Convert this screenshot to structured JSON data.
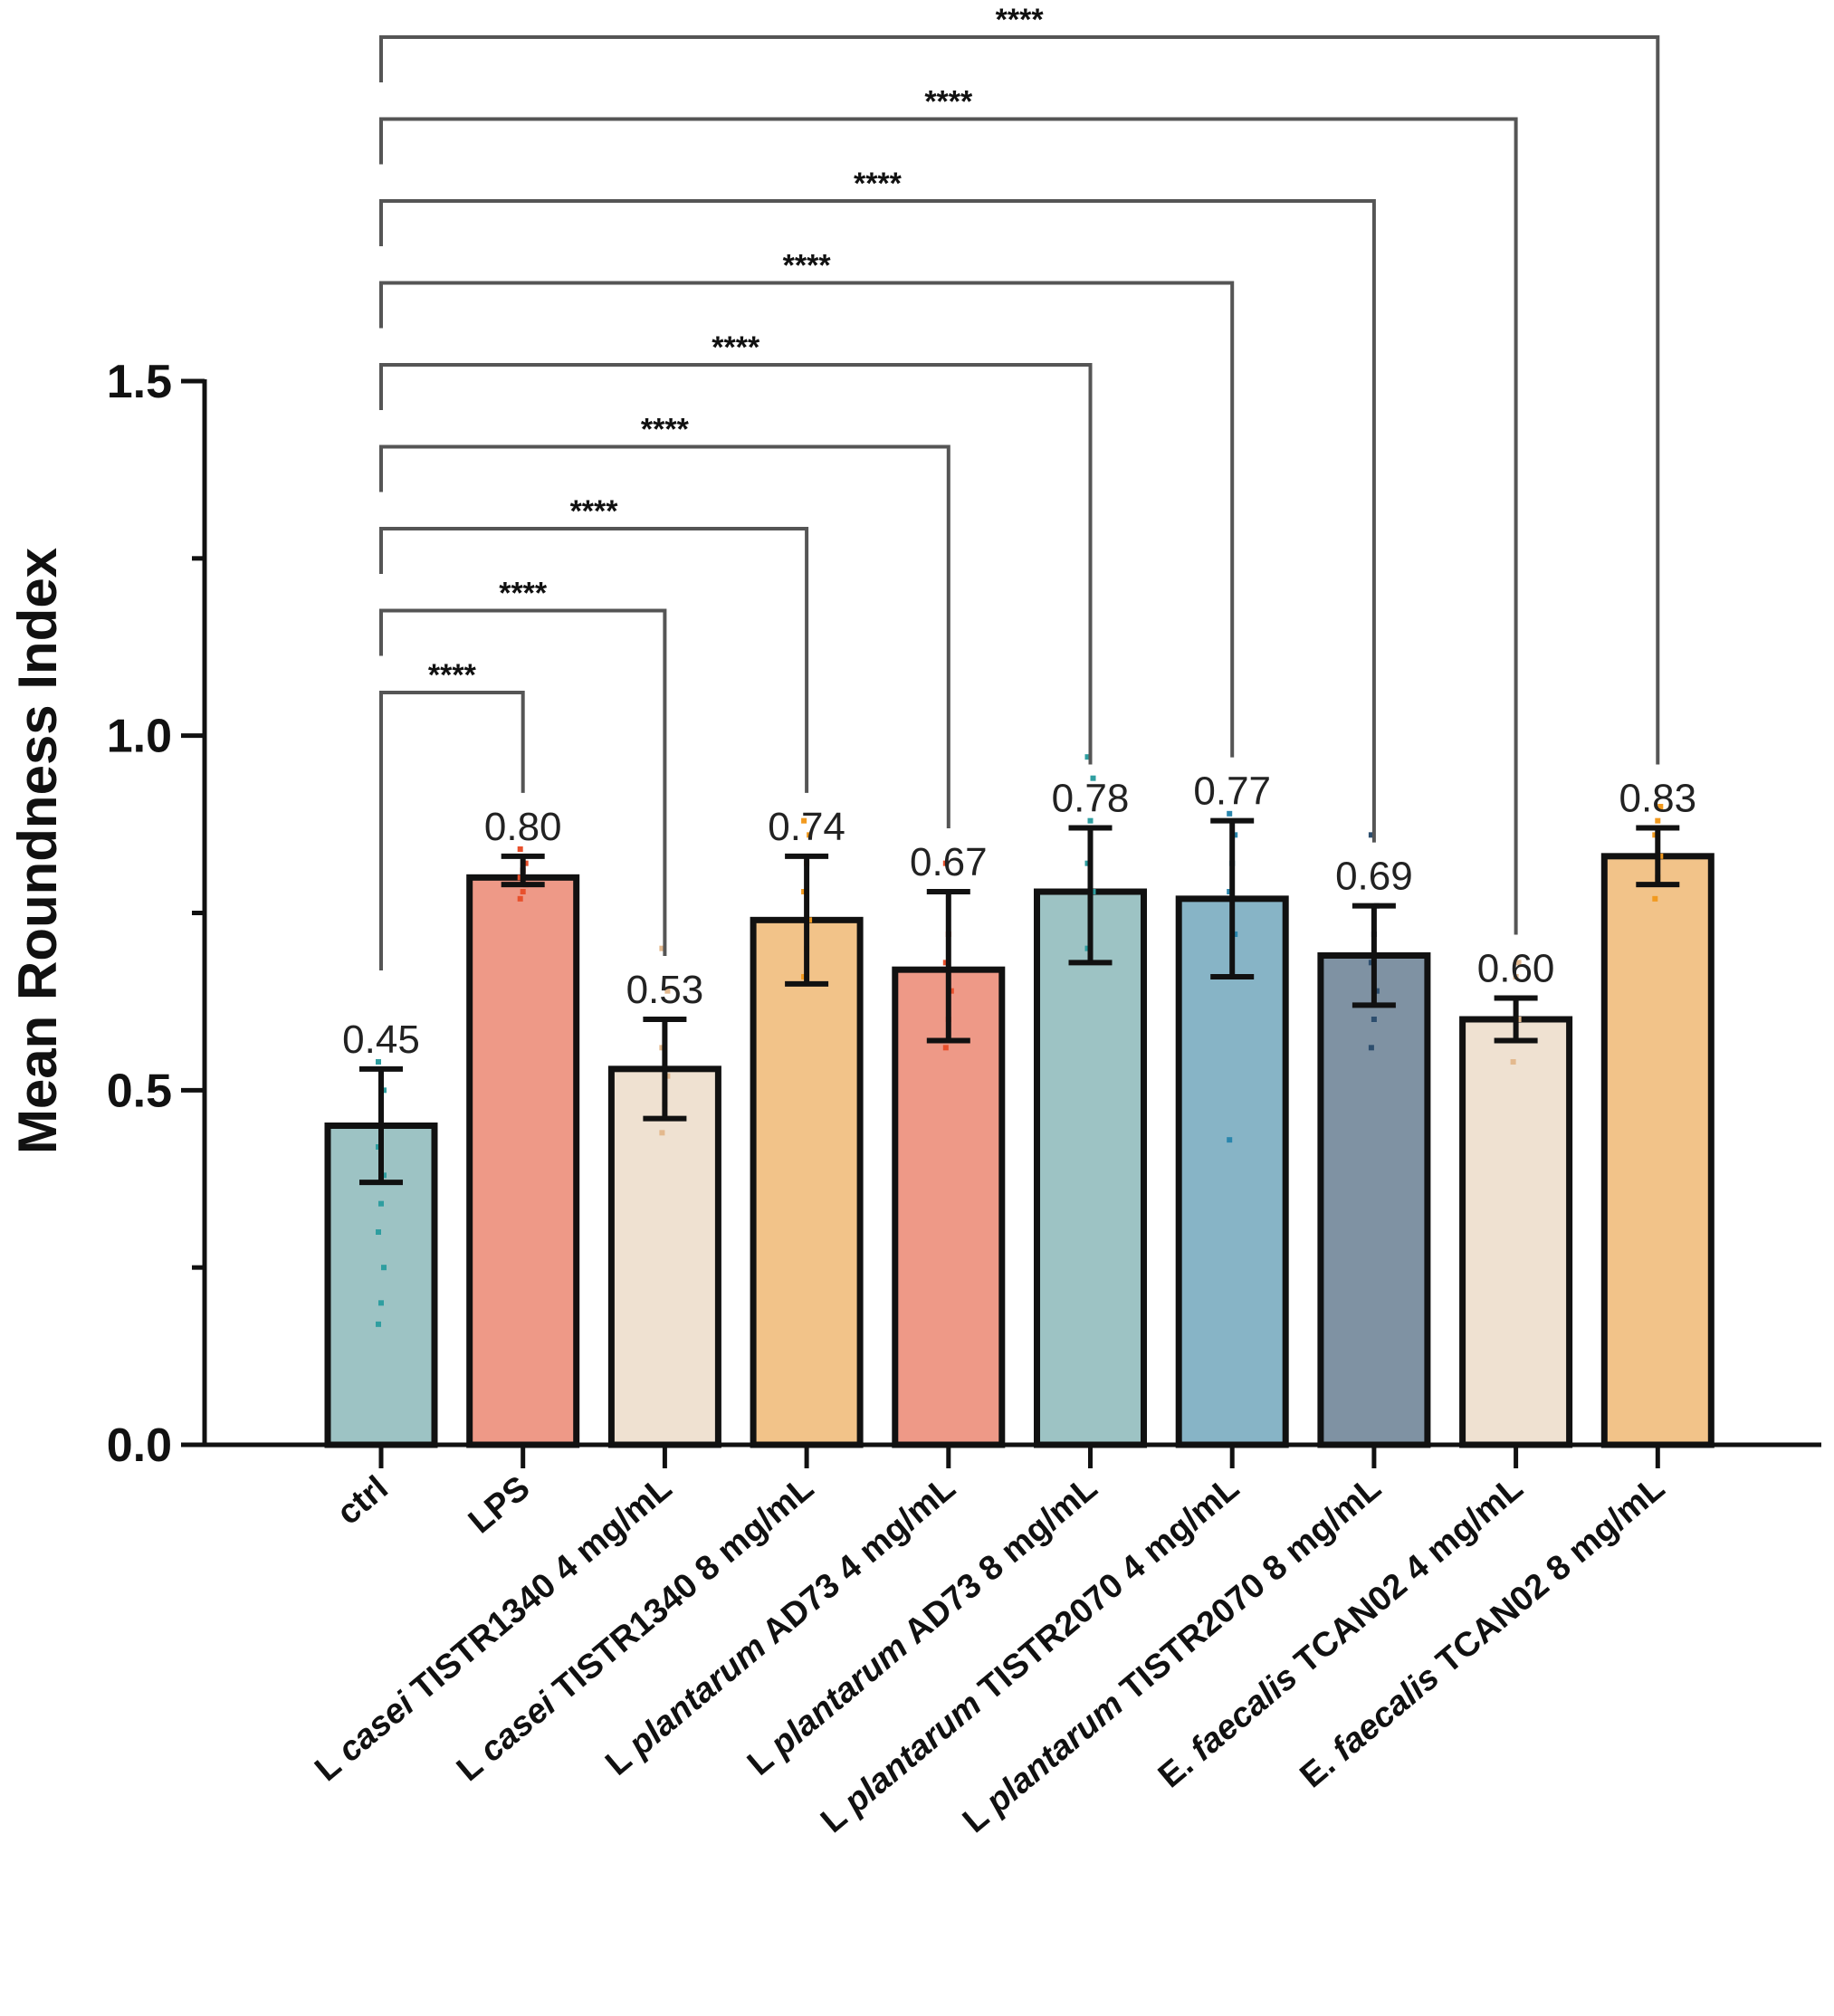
{
  "chart_data": {
    "type": "bar",
    "ylabel": "Mean Roundness Index",
    "ylim": [
      0,
      1.5
    ],
    "yticks": [
      "0.0",
      "0.5",
      "1.0",
      "1.5"
    ],
    "categories": [
      {
        "pre": "",
        "it": "",
        "post": "ctrl"
      },
      {
        "pre": "",
        "it": "",
        "post": "LPS"
      },
      {
        "pre": "L ",
        "it": "casei",
        "post": " TISTR1340 4 mg/mL"
      },
      {
        "pre": "L ",
        "it": "casei",
        "post": " TISTR1340 8 mg/mL"
      },
      {
        "pre": "L ",
        "it": "plantarum",
        "post": " AD73 4 mg/mL"
      },
      {
        "pre": "L ",
        "it": "plantarum",
        "post": " AD73 8 mg/mL"
      },
      {
        "pre": "L ",
        "it": "plantarum",
        "post": " TISTR2070 4 mg/mL"
      },
      {
        "pre": "L ",
        "it": "plantarum",
        "post": " TISTR2070 8 mg/mL"
      },
      {
        "pre": "E. ",
        "it": "faecalis",
        "post": " TCAN02 4 mg/mL"
      },
      {
        "pre": "E. ",
        "it": "faecalis",
        "post": " TCAN02 8 mg/mL"
      }
    ],
    "values": [
      0.45,
      0.8,
      0.53,
      0.74,
      0.67,
      0.78,
      0.77,
      0.69,
      0.6,
      0.83
    ],
    "value_labels": [
      "0.45",
      "0.80",
      "0.53",
      "0.74",
      "0.67",
      "0.78",
      "0.77",
      "0.69",
      "0.60",
      "0.83"
    ],
    "error_low": [
      0.37,
      0.79,
      0.46,
      0.65,
      0.57,
      0.68,
      0.66,
      0.62,
      0.57,
      0.79
    ],
    "error_high": [
      0.53,
      0.83,
      0.6,
      0.83,
      0.78,
      0.87,
      0.88,
      0.76,
      0.63,
      0.87
    ],
    "bar_colors": [
      "#9dc3c4",
      "#ee9987",
      "#efe1d1",
      "#f2c389",
      "#ee9987",
      "#9dc3c4",
      "#87b4c6",
      "#7f92a3",
      "#efe1d1",
      "#f2c389"
    ],
    "point_colors": [
      "#2f9ea0",
      "#e8502c",
      "#e3b98e",
      "#f29a1f",
      "#e8502c",
      "#2f9ea0",
      "#2a86ad",
      "#2d4e6e",
      "#e3b98e",
      "#f29a1f"
    ],
    "points": [
      [
        0.17,
        0.2,
        0.25,
        0.3,
        0.34,
        0.38,
        0.42,
        0.46,
        0.5,
        0.54
      ],
      [
        0.77,
        0.78,
        0.79,
        0.8,
        0.81,
        0.82,
        0.84
      ],
      [
        0.44,
        0.48,
        0.52,
        0.56,
        0.6,
        0.64,
        0.7
      ],
      [
        0.66,
        0.7,
        0.74,
        0.78,
        0.82,
        0.86,
        0.88
      ],
      [
        0.56,
        0.6,
        0.64,
        0.68,
        0.72,
        0.78,
        0.82
      ],
      [
        0.7,
        0.74,
        0.78,
        0.82,
        0.88,
        0.94,
        0.97
      ],
      [
        0.43,
        0.66,
        0.72,
        0.78,
        0.82,
        0.86,
        0.89
      ],
      [
        0.56,
        0.6,
        0.64,
        0.68,
        0.72,
        0.76,
        0.86
      ],
      [
        0.54,
        0.57,
        0.6,
        0.63,
        0.66,
        0.68
      ],
      [
        0.77,
        0.8,
        0.83,
        0.86,
        0.88,
        0.9
      ]
    ],
    "significance": [
      {
        "from": 0,
        "to": 1,
        "label": "****"
      },
      {
        "from": 0,
        "to": 2,
        "label": "****"
      },
      {
        "from": 0,
        "to": 3,
        "label": "****"
      },
      {
        "from": 0,
        "to": 4,
        "label": "****"
      },
      {
        "from": 0,
        "to": 5,
        "label": "****"
      },
      {
        "from": 0,
        "to": 6,
        "label": "****"
      },
      {
        "from": 0,
        "to": 7,
        "label": "****"
      },
      {
        "from": 0,
        "to": 8,
        "label": "****"
      },
      {
        "from": 0,
        "to": 9,
        "label": "****"
      }
    ]
  }
}
